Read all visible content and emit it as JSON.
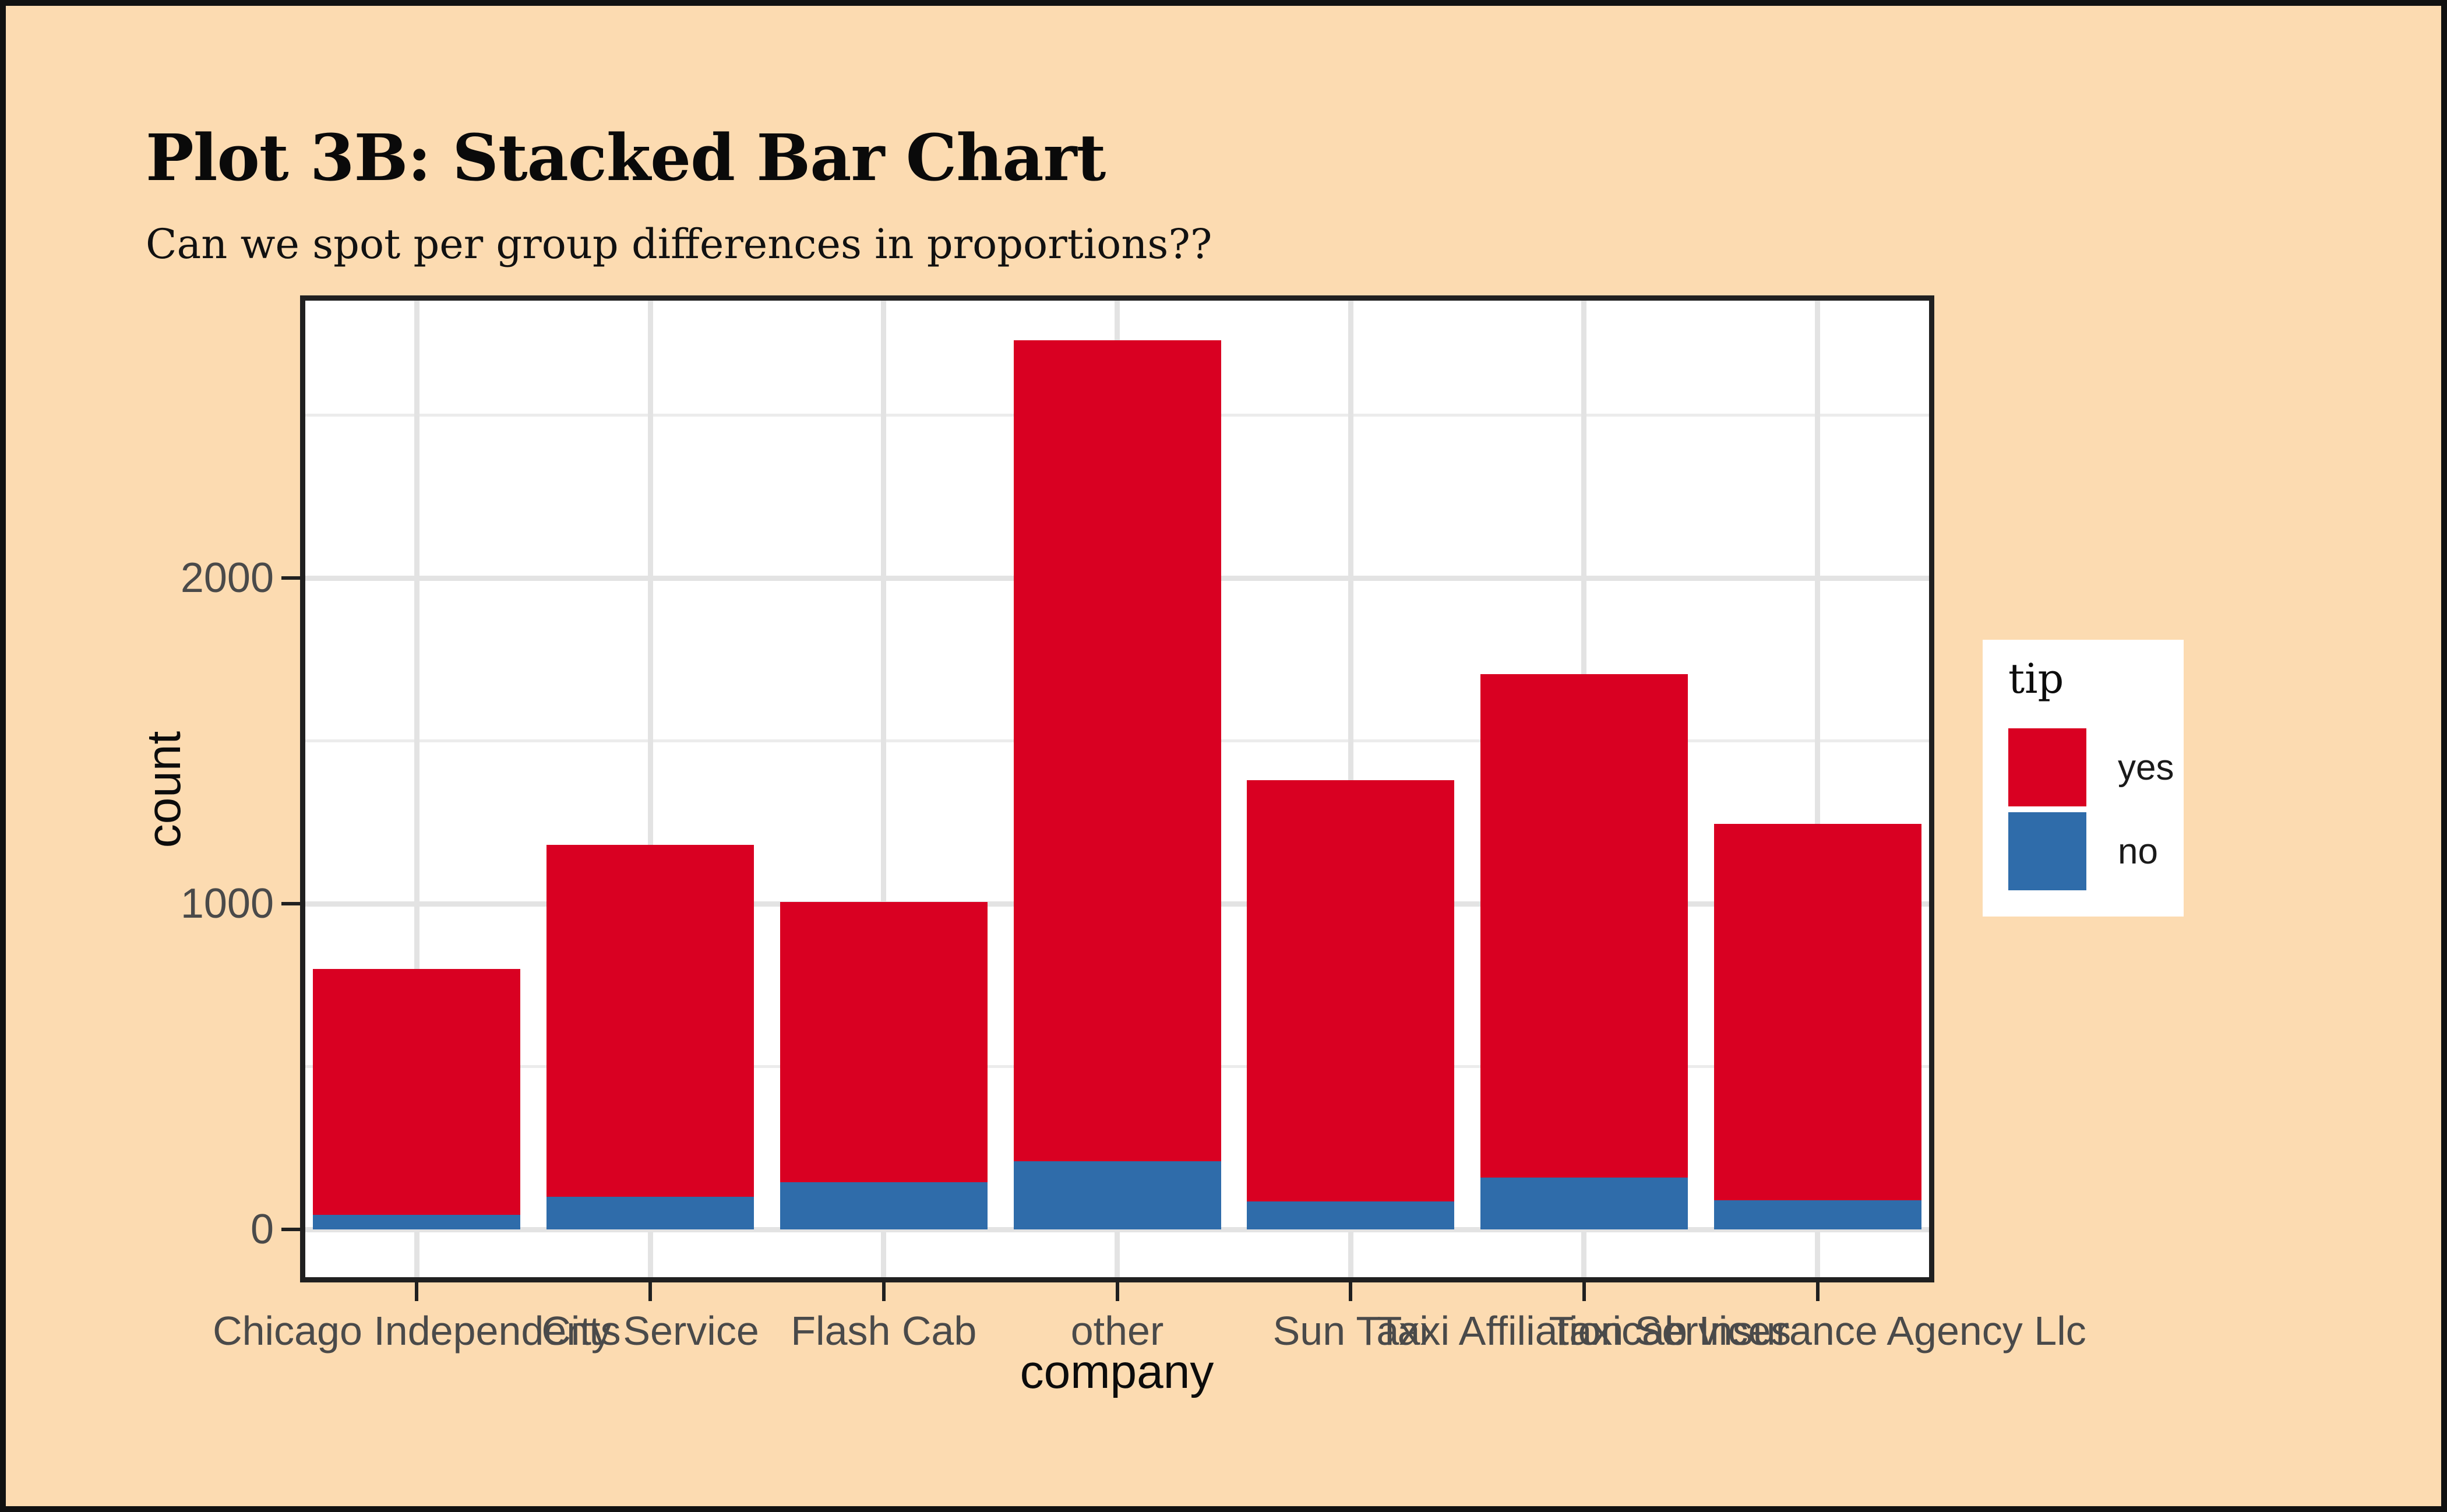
{
  "header": {
    "title": "Plot 3B: Stacked Bar Chart",
    "subtitle": "Can we spot per group differences in proportions??"
  },
  "chart_data": {
    "type": "bar",
    "stacked": true,
    "title": "Plot 3B: Stacked Bar Chart",
    "subtitle": "Can we spot per group differences in proportions??",
    "xlabel": "company",
    "ylabel": "count",
    "categories": [
      "Chicago Independents",
      "City Service",
      "Flash Cab",
      "other",
      "Sun Taxi",
      "Taxi Affiliation Services",
      "Taxicab Insurance Agency Llc"
    ],
    "series": [
      {
        "name": "no",
        "color": "#2F6CAA",
        "stack_position": "bottom",
        "values": [
          45,
          100,
          145,
          210,
          85,
          160,
          90
        ]
      },
      {
        "name": "yes",
        "color": "#D90022",
        "stack_position": "top",
        "values": [
          755,
          1080,
          860,
          2520,
          1295,
          1545,
          1155
        ]
      }
    ],
    "totals": [
      800,
      1180,
      1005,
      2730,
      1380,
      1705,
      1245
    ],
    "y_ticks": [
      0,
      1000,
      2000
    ],
    "y_minor_ticks": [
      500,
      1500,
      2500
    ],
    "ylim": [
      0,
      2870
    ],
    "grid": true,
    "legend": {
      "position": "right",
      "title": "tip",
      "entries": [
        {
          "label": "yes",
          "color": "#D90022"
        },
        {
          "label": "no",
          "color": "#2F6CAA"
        }
      ]
    }
  },
  "colors": {
    "background": "#FCDBB1",
    "panel_background": "#FFFFFF",
    "panel_border": "#202020",
    "figure_border": "#111111",
    "grid_major": "#E3E3E3",
    "grid_minor": "#ECECEC",
    "tick_label": "#4A4A4A",
    "text": "#0C0C0C",
    "bar_yes": "#D90022",
    "bar_no": "#2F6CAA"
  }
}
